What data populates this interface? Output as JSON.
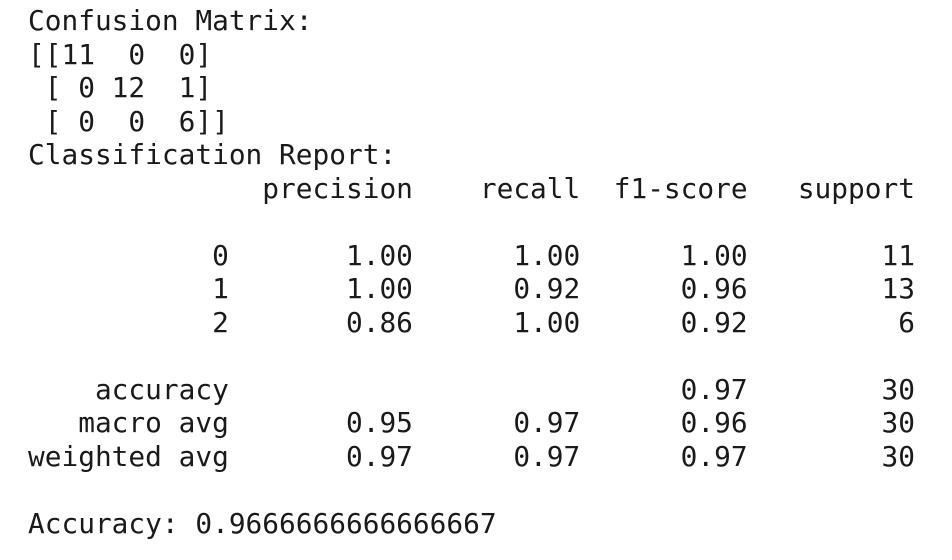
{
  "colors": {
    "background": "#ffffff",
    "text": "#1a1a1a"
  },
  "confusion_matrix": {
    "heading": "Confusion Matrix:",
    "matrix": [
      [
        11,
        0,
        0
      ],
      [
        0,
        12,
        1
      ],
      [
        0,
        0,
        6
      ]
    ],
    "text": "Confusion Matrix:\n[[11  0  0]\n [ 0 12  1]\n [ 0  0  6]]"
  },
  "classification_report": {
    "heading": "Classification Report:",
    "columns": [
      "precision",
      "recall",
      "f1-score",
      "support"
    ],
    "classes": [
      {
        "label": "0",
        "precision": "1.00",
        "recall": "1.00",
        "f1_score": "1.00",
        "support": "11"
      },
      {
        "label": "1",
        "precision": "1.00",
        "recall": "0.92",
        "f1_score": "0.96",
        "support": "13"
      },
      {
        "label": "2",
        "precision": "0.86",
        "recall": "1.00",
        "f1_score": "0.92",
        "support": "6"
      }
    ],
    "summary": [
      {
        "label": "accuracy",
        "precision": "",
        "recall": "",
        "f1_score": "0.97",
        "support": "30"
      },
      {
        "label": "macro avg",
        "precision": "0.95",
        "recall": "0.97",
        "f1_score": "0.96",
        "support": "30"
      },
      {
        "label": "weighted avg",
        "precision": "0.97",
        "recall": "0.97",
        "f1_score": "0.97",
        "support": "30"
      }
    ],
    "text": "Classification Report:\n              precision    recall  f1-score   support\n\n           0       1.00      1.00      1.00        11\n           1       1.00      0.92      0.96        13\n           2       0.86      1.00      0.92         6\n\n    accuracy                           0.97        30\n   macro avg       0.95      0.97      0.96        30\nweighted avg       0.97      0.97      0.97        30"
  },
  "accuracy_line": {
    "label": "Accuracy:",
    "value": "0.9666666666666667",
    "text": "Accuracy: 0.9666666666666667"
  }
}
